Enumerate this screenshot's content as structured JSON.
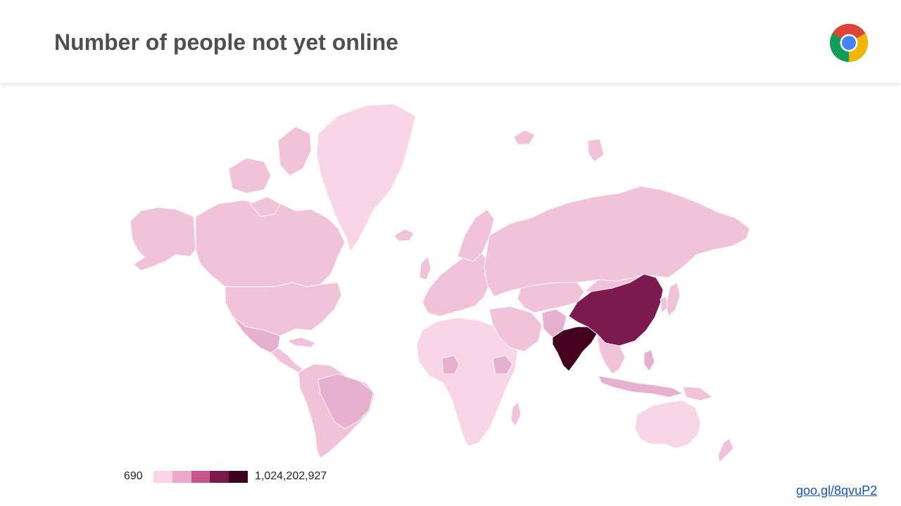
{
  "slide": {
    "title": "Number of people not yet online",
    "logo_icon": "chrome-logo-icon",
    "link_text": "goo.gl/8qvuP2"
  },
  "legend": {
    "min_label": "690",
    "max_label": "1,024,202,927",
    "gradient": [
      "#f8d4e6",
      "#e9a9ca",
      "#c95590",
      "#7a1850",
      "#3d0020"
    ]
  },
  "colors": {
    "very_low": "#f8d6e8",
    "low": "#f0c3db",
    "medium_low": "#e8b0cf",
    "high": "#7b1a4f",
    "highest": "#44001f",
    "link": "#1a4fb8"
  }
}
